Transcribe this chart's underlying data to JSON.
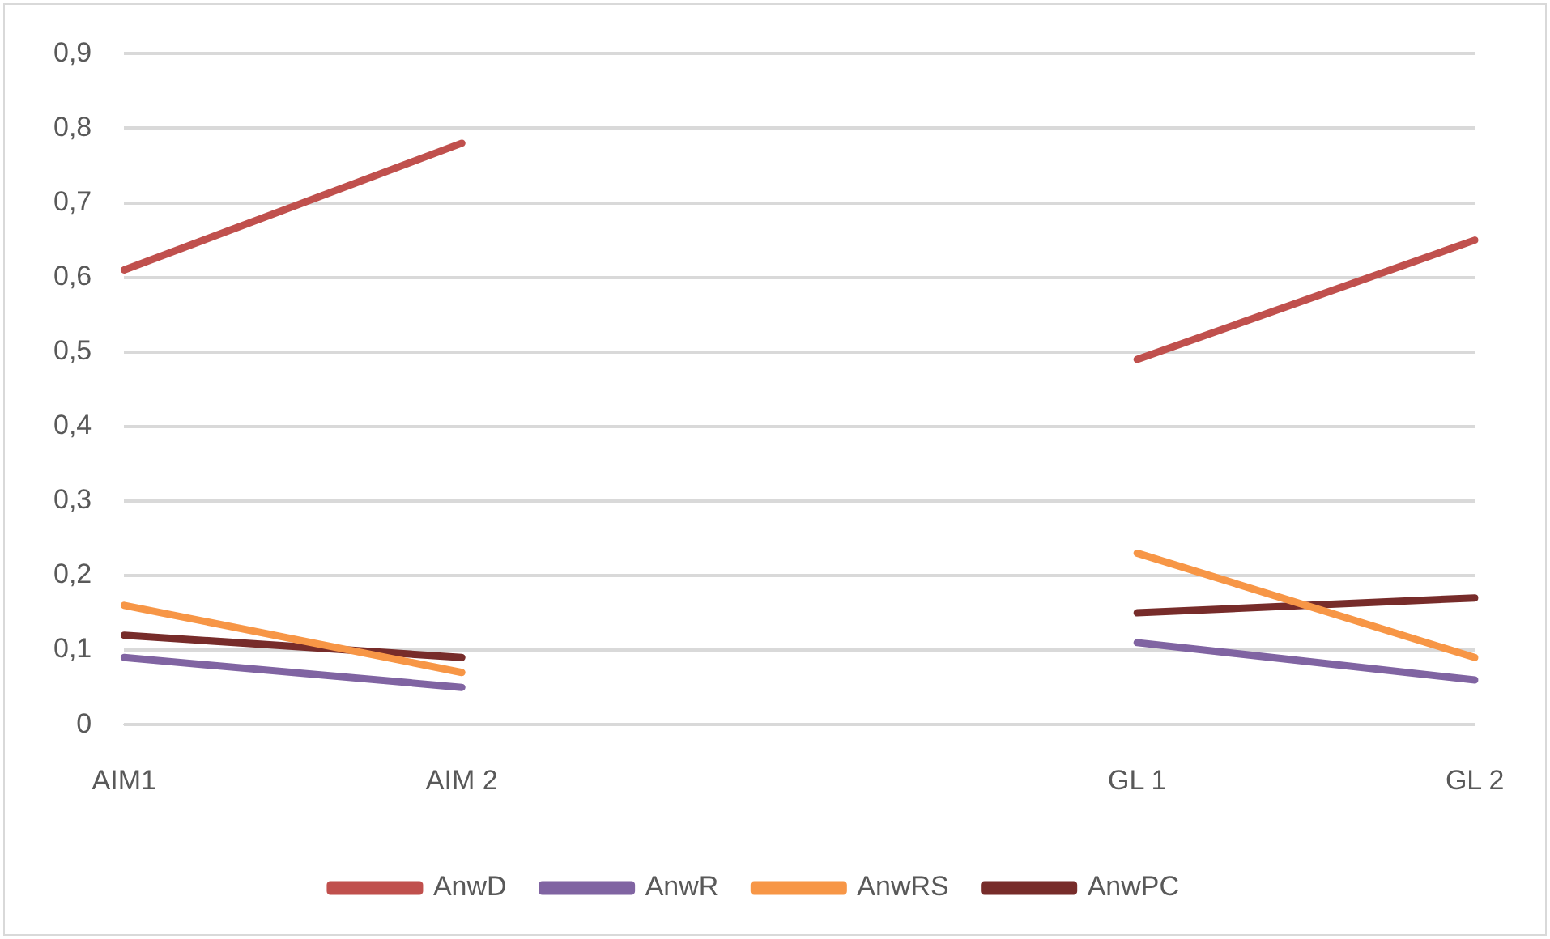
{
  "chart_data": {
    "type": "line",
    "categories": [
      "AIM1",
      "AIM 2",
      null,
      "GL 1",
      "GL 2"
    ],
    "series": [
      {
        "name": "AnwD",
        "color": "#c0504d",
        "values": [
          0.61,
          0.78,
          null,
          0.49,
          0.65
        ]
      },
      {
        "name": "AnwR",
        "color": "#8064a2",
        "values": [
          0.09,
          0.05,
          null,
          0.11,
          0.06
        ]
      },
      {
        "name": "AnwRS",
        "color": "#f79646",
        "values": [
          0.16,
          0.07,
          null,
          0.23,
          0.09
        ]
      },
      {
        "name": "AnwPC",
        "color": "#772c2a",
        "values": [
          0.12,
          0.09,
          null,
          0.15,
          0.17
        ]
      }
    ],
    "ylim": [
      0,
      0.9
    ],
    "yticks": [
      0,
      {
        "value": 0.1,
        "label": "0,1"
      },
      {
        "value": 0.2,
        "label": "0,2"
      },
      {
        "value": 0.3,
        "label": "0,3"
      },
      {
        "value": 0.4,
        "label": "0,4"
      },
      {
        "value": 0.5,
        "label": "0,5"
      },
      {
        "value": 0.6,
        "label": "0,6"
      },
      {
        "value": 0.7,
        "label": "0,7"
      },
      {
        "value": 0.8,
        "label": "0,8"
      },
      {
        "value": 0.9,
        "label": "0,9"
      }
    ],
    "grid": "y",
    "legend": "bottom",
    "marker": "none",
    "line_style": "solid"
  }
}
